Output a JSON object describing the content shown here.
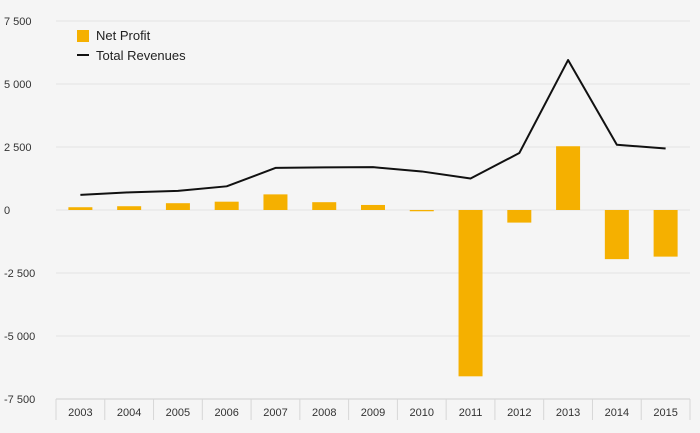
{
  "chart_data": {
    "type": "bar+line",
    "categories": [
      "2003",
      "2004",
      "2005",
      "2006",
      "2007",
      "2008",
      "2009",
      "2010",
      "2011",
      "2012",
      "2013",
      "2014",
      "2015"
    ],
    "series": [
      {
        "name": "Net Profit",
        "type": "bar",
        "color": "#f5b000",
        "values": [
          110,
          150,
          270,
          330,
          620,
          310,
          200,
          -50,
          -6600,
          -500,
          2530,
          -1950,
          -1850
        ]
      },
      {
        "name": "Total Revenues",
        "type": "line",
        "color": "#111111",
        "values": [
          600,
          700,
          760,
          940,
          1670,
          1690,
          1700,
          1530,
          1250,
          2260,
          5950,
          2590,
          2440
        ]
      }
    ],
    "y_ticks": [
      7500,
      5000,
      2500,
      0,
      -2500,
      -5000,
      -7500
    ],
    "y_tick_labels": [
      "7 500",
      "5 000",
      "2 500",
      "0",
      "-2 500",
      "-5 000",
      "-7 500"
    ],
    "ylim": [
      -7500,
      7500
    ],
    "grid": true,
    "legend": "top-left",
    "title": "",
    "xlabel": "",
    "ylabel": ""
  }
}
